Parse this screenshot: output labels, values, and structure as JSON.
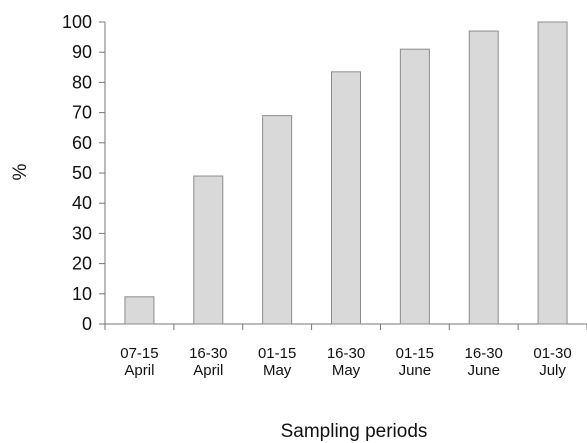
{
  "chart_data": {
    "type": "bar",
    "categories": [
      [
        "07-15",
        "April"
      ],
      [
        "16-30",
        "April"
      ],
      [
        "01-15",
        "May"
      ],
      [
        "16-30",
        "May"
      ],
      [
        "01-15",
        "June"
      ],
      [
        "16-30",
        "June"
      ],
      [
        "01-30",
        "July"
      ]
    ],
    "values": [
      9,
      49,
      69,
      83.5,
      91,
      97,
      100
    ],
    "title": "",
    "xlabel": "Sampling periods",
    "ylabel": "%",
    "ylim": [
      0,
      100
    ],
    "yticks": [
      0,
      10,
      20,
      30,
      40,
      50,
      60,
      70,
      80,
      90,
      100
    ],
    "grid": false,
    "bar_fill": "#d9d9d9",
    "bar_stroke": "#8c8c8c",
    "axis_color": "#777777"
  }
}
